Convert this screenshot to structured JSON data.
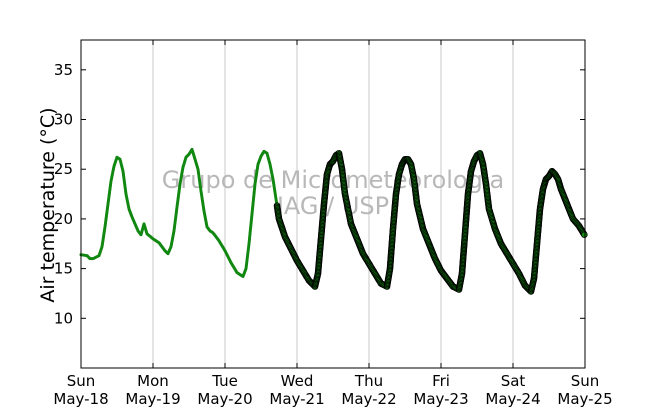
{
  "chart_data": {
    "type": "scatter",
    "title": "",
    "ylabel": "Air temperature (°C)",
    "xlabel": "",
    "ylim": [
      5,
      38
    ],
    "yticks": [
      10,
      15,
      20,
      25,
      30,
      35
    ],
    "xlim": [
      "2014-05-18 00:00",
      "2014-05-25 00:00"
    ],
    "xticks": [
      {
        "day": "Sun",
        "date": "May-18"
      },
      {
        "day": "Mon",
        "date": "May-19"
      },
      {
        "day": "Tue",
        "date": "May-20"
      },
      {
        "day": "Wed",
        "date": "May-21"
      },
      {
        "day": "Thu",
        "date": "May-22"
      },
      {
        "day": "Fri",
        "date": "May-23"
      },
      {
        "day": "Sat",
        "date": "May-24"
      },
      {
        "day": "Sun",
        "date": "May-25"
      }
    ],
    "vertical_grid": true,
    "horizontal_grid": false,
    "series_color": "#118811",
    "marker_edge_color": "#000000",
    "watermark": [
      "Grupo de Micrometeorologia",
      "IAG / USP"
    ],
    "series": [
      {
        "points": [
          [
            "05-18 00:00",
            16.4
          ],
          [
            "05-18 02:00",
            16.3
          ],
          [
            "05-18 03:00",
            16.0
          ],
          [
            "05-18 04:00",
            16.0
          ],
          [
            "05-18 06:00",
            16.3
          ],
          [
            "05-18 07:00",
            17.2
          ],
          [
            "05-18 08:00",
            19.2
          ],
          [
            "05-18 09:00",
            21.5
          ],
          [
            "05-18 10:00",
            23.8
          ],
          [
            "05-18 11:00",
            25.3
          ],
          [
            "05-18 12:00",
            26.2
          ],
          [
            "05-18 13:00",
            26.0
          ],
          [
            "05-18 14:00",
            24.8
          ],
          [
            "05-18 15:00",
            22.5
          ],
          [
            "05-18 16:00",
            21.0
          ],
          [
            "05-18 17:00",
            20.2
          ],
          [
            "05-18 18:00",
            19.5
          ],
          [
            "05-18 19:00",
            18.8
          ],
          [
            "05-18 20:00",
            18.4
          ],
          [
            "05-18 21:00",
            19.5
          ],
          [
            "05-18 22:00",
            18.5
          ],
          [
            "05-19 00:00",
            18.0
          ],
          [
            "05-19 02:00",
            17.6
          ],
          [
            "05-19 04:00",
            16.8
          ],
          [
            "05-19 05:00",
            16.5
          ],
          [
            "05-19 06:00",
            17.2
          ],
          [
            "05-19 07:00",
            18.8
          ],
          [
            "05-19 08:00",
            21.2
          ],
          [
            "05-19 09:00",
            23.5
          ],
          [
            "05-19 10:00",
            25.2
          ],
          [
            "05-19 11:00",
            26.2
          ],
          [
            "05-19 12:00",
            26.5
          ],
          [
            "05-19 13:00",
            27.0
          ],
          [
            "05-19 14:00",
            26.0
          ],
          [
            "05-19 15:00",
            25.0
          ],
          [
            "05-19 16:00",
            22.8
          ],
          [
            "05-19 17:00",
            20.8
          ],
          [
            "05-19 18:00",
            19.2
          ],
          [
            "05-19 19:00",
            18.8
          ],
          [
            "05-19 20:00",
            18.6
          ],
          [
            "05-19 22:00",
            17.8
          ],
          [
            "05-20 00:00",
            16.8
          ],
          [
            "05-20 02:00",
            15.6
          ],
          [
            "05-20 04:00",
            14.6
          ],
          [
            "05-20 06:00",
            14.2
          ],
          [
            "05-20 07:00",
            15.0
          ],
          [
            "05-20 08:00",
            17.5
          ],
          [
            "05-20 09:00",
            20.5
          ],
          [
            "05-20 10:00",
            23.5
          ],
          [
            "05-20 11:00",
            25.5
          ],
          [
            "05-20 12:00",
            26.3
          ],
          [
            "05-20 13:00",
            26.8
          ],
          [
            "05-20 14:00",
            26.6
          ],
          [
            "05-20 15:00",
            25.5
          ],
          [
            "05-20 16:00",
            24.0
          ],
          [
            "05-20 17:00",
            22.0
          ],
          [
            "05-20 18:00",
            20.0
          ],
          [
            "05-20 20:00",
            18.2
          ],
          [
            "05-20 22:00",
            17.0
          ],
          [
            "05-21 00:00",
            15.8
          ],
          [
            "05-21 02:00",
            14.8
          ],
          [
            "05-21 04:00",
            13.8
          ],
          [
            "05-21 06:00",
            13.2
          ],
          [
            "05-21 07:00",
            14.5
          ],
          [
            "05-21 08:00",
            18.0
          ],
          [
            "05-21 09:00",
            21.5
          ],
          [
            "05-21 10:00",
            24.5
          ],
          [
            "05-21 11:00",
            25.5
          ],
          [
            "05-21 12:00",
            25.8
          ],
          [
            "05-21 13:00",
            26.4
          ],
          [
            "05-21 14:00",
            26.6
          ],
          [
            "05-21 15:00",
            25.0
          ],
          [
            "05-21 16:00",
            22.5
          ],
          [
            "05-21 18:00",
            19.5
          ],
          [
            "05-21 20:00",
            18.0
          ],
          [
            "05-21 22:00",
            16.5
          ],
          [
            "05-22 00:00",
            15.5
          ],
          [
            "05-22 02:00",
            14.5
          ],
          [
            "05-22 04:00",
            13.5
          ],
          [
            "05-22 06:00",
            13.2
          ],
          [
            "05-22 07:00",
            15.0
          ],
          [
            "05-22 08:00",
            19.0
          ],
          [
            "05-22 09:00",
            22.5
          ],
          [
            "05-22 10:00",
            24.5
          ],
          [
            "05-22 11:00",
            25.5
          ],
          [
            "05-22 12:00",
            26.0
          ],
          [
            "05-22 13:00",
            26.0
          ],
          [
            "05-22 14:00",
            25.5
          ],
          [
            "05-22 15:00",
            24.0
          ],
          [
            "05-22 16:00",
            21.5
          ],
          [
            "05-22 18:00",
            19.0
          ],
          [
            "05-22 20:00",
            17.5
          ],
          [
            "05-22 22:00",
            16.0
          ],
          [
            "05-23 00:00",
            14.8
          ],
          [
            "05-23 02:00",
            14.0
          ],
          [
            "05-23 04:00",
            13.2
          ],
          [
            "05-23 06:00",
            12.9
          ],
          [
            "05-23 07:00",
            14.5
          ],
          [
            "05-23 08:00",
            18.5
          ],
          [
            "05-23 09:00",
            22.5
          ],
          [
            "05-23 10:00",
            24.8
          ],
          [
            "05-23 11:00",
            25.8
          ],
          [
            "05-23 12:00",
            26.4
          ],
          [
            "05-23 13:00",
            26.6
          ],
          [
            "05-23 14:00",
            25.5
          ],
          [
            "05-23 15:00",
            23.5
          ],
          [
            "05-23 16:00",
            21.0
          ],
          [
            "05-23 18:00",
            19.0
          ],
          [
            "05-23 20:00",
            17.5
          ],
          [
            "05-23 22:00",
            16.5
          ],
          [
            "05-24 00:00",
            15.5
          ],
          [
            "05-24 02:00",
            14.5
          ],
          [
            "05-24 04:00",
            13.3
          ],
          [
            "05-24 06:00",
            12.7
          ],
          [
            "05-24 07:00",
            14.0
          ],
          [
            "05-24 08:00",
            17.5
          ],
          [
            "05-24 09:00",
            21.0
          ],
          [
            "05-24 10:00",
            23.0
          ],
          [
            "05-24 11:00",
            24.0
          ],
          [
            "05-24 12:00",
            24.3
          ],
          [
            "05-24 13:00",
            24.8
          ],
          [
            "05-24 14:00",
            24.5
          ],
          [
            "05-24 15:00",
            24.0
          ],
          [
            "05-24 16:00",
            23.0
          ],
          [
            "05-24 18:00",
            21.5
          ],
          [
            "05-24 20:00",
            20.0
          ],
          [
            "05-24 22:00",
            19.3
          ],
          [
            "05-25 00:00",
            18.3
          ]
        ]
      }
    ]
  }
}
